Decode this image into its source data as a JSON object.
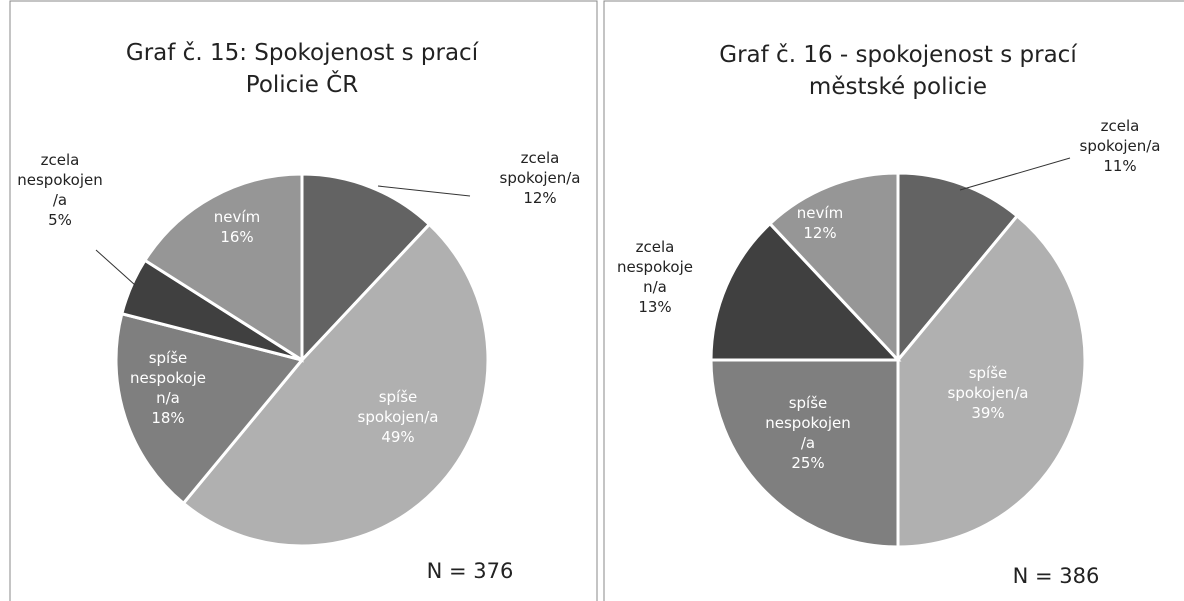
{
  "chart_data": [
    {
      "type": "pie",
      "title": "Graf č. 15: Spokojenost s prací\nPolicie ČR",
      "categories": [
        "zcela\nspokojen/a",
        "spíše\nspokojen/a",
        "spíše\nnespokoje\nn/a",
        "zcela\nnespokojen\n/a",
        "nevím"
      ],
      "values": [
        12,
        49,
        18,
        5,
        16
      ],
      "value_labels": [
        "12%",
        "49%",
        "18%",
        "5%",
        "16%"
      ],
      "colors": [
        "#636363",
        "#b0b0b0",
        "#7f7f7f",
        "#404040",
        "#969696"
      ],
      "annotation": "N = 376"
    },
    {
      "type": "pie",
      "title": "Graf č. 16 - spokojenost s prací\nměstské policie",
      "categories": [
        "zcela\nspokojen/a",
        "spíše\nspokojen/a",
        "spíše\nnespokojen\n/a",
        "zcela\nnespokoje\nn/a",
        "nevím"
      ],
      "values": [
        11,
        39,
        25,
        13,
        12
      ],
      "value_labels": [
        "11%",
        "39%",
        "25%",
        "13%",
        "12%"
      ],
      "colors": [
        "#636363",
        "#b0b0b0",
        "#7f7f7f",
        "#404040",
        "#969696"
      ],
      "annotation": "N = 386"
    }
  ]
}
